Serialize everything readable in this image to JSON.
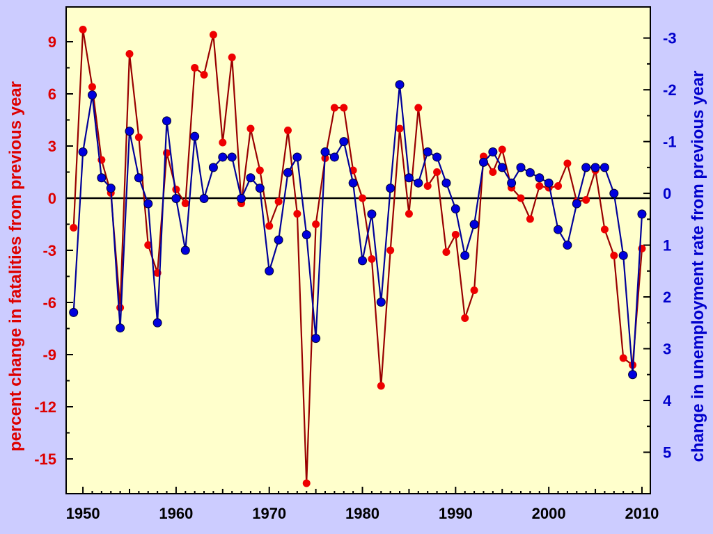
{
  "chart_data": {
    "type": "line",
    "ylabel_left": "percent change in fatalities from previous year",
    "ylabel_right": "change in unemployment rate from previous year",
    "xlim": [
      1948.2,
      2010.9
    ],
    "ylim_left": [
      -17,
      11
    ],
    "ylim_right_inverted": [
      -3.6,
      5.8
    ],
    "x_ticks": [
      1950,
      1960,
      1970,
      1980,
      1990,
      2000,
      2010
    ],
    "y_left_ticks": [
      9,
      6,
      3,
      0,
      -3,
      -6,
      -9,
      -12,
      -15
    ],
    "y_right_ticks": [
      -3,
      -2,
      -1,
      0,
      1,
      2,
      3,
      4,
      5
    ],
    "colors": {
      "fatalities": "#990000",
      "fatalities_marker": "#ee0000",
      "unemployment": "#000099",
      "unemployment_marker": "#0000dd",
      "plot_bg": "#ffffcc",
      "page_bg": "#ccccff"
    },
    "series": [
      {
        "axis": "left",
        "x": [
          1949,
          1950,
          1951,
          1952,
          1953,
          1954,
          1955,
          1956,
          1957,
          1958,
          1959,
          1960,
          1961,
          1962,
          1963,
          1964,
          1965,
          1966,
          1967,
          1968,
          1969,
          1970,
          1971,
          1972,
          1973,
          1974,
          1975,
          1976,
          1977,
          1978,
          1979,
          1980,
          1981,
          1982,
          1983,
          1984,
          1985,
          1986,
          1987,
          1988,
          1989,
          1990,
          1991,
          1992,
          1993,
          1994,
          1995,
          1996,
          1997,
          1998,
          1999,
          2000,
          2001,
          2002,
          2003,
          2004,
          2005,
          2006,
          2007,
          2008,
          2009,
          2010
        ],
        "y": [
          -1.7,
          9.7,
          6.4,
          2.2,
          0.3,
          -6.3,
          8.3,
          3.5,
          -2.7,
          -4.3,
          2.6,
          0.5,
          -0.3,
          7.5,
          7.1,
          9.4,
          3.2,
          8.1,
          -0.3,
          4.0,
          1.6,
          -1.6,
          -0.2,
          3.9,
          -0.9,
          -16.4,
          -1.5,
          2.3,
          5.2,
          5.2,
          1.6,
          0.0,
          -3.5,
          -10.8,
          -3.0,
          4.0,
          -0.9,
          5.2,
          0.7,
          1.5,
          -3.1,
          -2.1,
          -6.9,
          -5.3,
          2.4,
          1.5,
          2.8,
          0.6,
          0.0,
          -1.2,
          0.7,
          0.6,
          0.7,
          2.0,
          -0.2,
          -0.1,
          1.6,
          -1.8,
          -3.3,
          -9.2,
          -9.6,
          -2.9
        ]
      },
      {
        "axis": "right",
        "x": [
          1949,
          1950,
          1951,
          1952,
          1953,
          1954,
          1955,
          1956,
          1957,
          1958,
          1959,
          1960,
          1961,
          1962,
          1963,
          1964,
          1965,
          1966,
          1967,
          1968,
          1969,
          1970,
          1971,
          1972,
          1973,
          1974,
          1975,
          1976,
          1977,
          1978,
          1979,
          1980,
          1981,
          1982,
          1983,
          1984,
          1985,
          1986,
          1987,
          1988,
          1989,
          1990,
          1991,
          1992,
          1993,
          1994,
          1995,
          1996,
          1997,
          1998,
          1999,
          2000,
          2001,
          2002,
          2003,
          2004,
          2005,
          2006,
          2007,
          2008,
          2009,
          2010
        ],
        "y": [
          2.3,
          -0.8,
          -1.9,
          -0.3,
          -0.1,
          2.6,
          -1.2,
          -0.3,
          0.2,
          2.5,
          -1.4,
          0.1,
          1.1,
          -1.1,
          0.1,
          -0.5,
          -0.7,
          -0.7,
          0.1,
          -0.3,
          -0.1,
          1.5,
          0.9,
          -0.4,
          -0.7,
          0.8,
          2.8,
          -0.8,
          -0.7,
          -1.0,
          -0.2,
          1.3,
          0.4,
          2.1,
          -0.1,
          -2.1,
          -0.3,
          -0.2,
          -0.8,
          -0.7,
          -0.2,
          0.3,
          1.2,
          0.6,
          -0.6,
          -0.8,
          -0.5,
          -0.2,
          -0.5,
          -0.4,
          -0.3,
          -0.2,
          0.7,
          1.0,
          0.2,
          -0.5,
          -0.5,
          -0.5,
          0.0,
          1.2,
          3.5,
          0.4
        ]
      }
    ]
  }
}
